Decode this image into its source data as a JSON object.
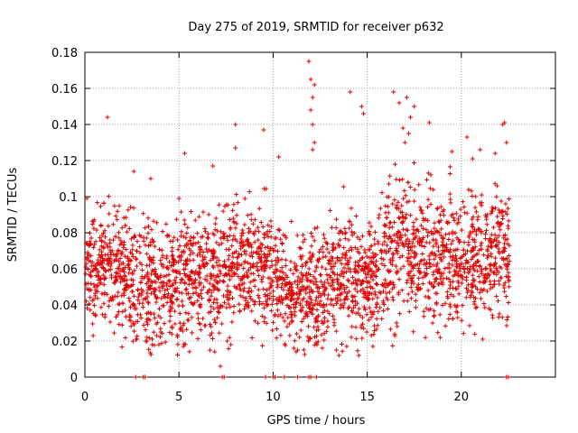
{
  "chart_data": {
    "type": "scatter",
    "title": "Day 275 of 2019, SRMTID for receiver p632",
    "xlabel": "GPS time / hours",
    "ylabel": "SRMTID / TECUs",
    "xlim": [
      0,
      25
    ],
    "ylim": [
      0,
      0.18
    ],
    "xticks": [
      0,
      5,
      10,
      15,
      20
    ],
    "yticks": [
      0,
      0.02,
      0.04,
      0.06,
      0.08,
      0.1,
      0.12,
      0.14,
      0.16,
      0.18
    ],
    "xtick_labels": [
      "0",
      "5",
      "10",
      "15",
      "20"
    ],
    "ytick_labels": [
      "0",
      "0.02",
      "0.04",
      "0.06",
      "0.08",
      "0.1",
      "0.12",
      "0.14",
      "0.16",
      "0.18"
    ],
    "grid": true,
    "marker": "+",
    "color": "#e00000",
    "series": [
      {
        "name": "SRMTID",
        "density_profile": {
          "x_bins": [
            0,
            1,
            2,
            3,
            4,
            5,
            6,
            7,
            8,
            9,
            10,
            11,
            12,
            13,
            14,
            15,
            16,
            17,
            18,
            19,
            20,
            21,
            22,
            22.6
          ],
          "y_center": [
            0.06,
            0.062,
            0.058,
            0.052,
            0.05,
            0.054,
            0.055,
            0.056,
            0.065,
            0.064,
            0.058,
            0.045,
            0.05,
            0.053,
            0.055,
            0.052,
            0.066,
            0.075,
            0.068,
            0.065,
            0.066,
            0.068,
            0.068,
            0.065
          ],
          "y_spread": [
            0.014,
            0.016,
            0.016,
            0.016,
            0.016,
            0.017,
            0.017,
            0.018,
            0.018,
            0.017,
            0.017,
            0.014,
            0.016,
            0.016,
            0.017,
            0.016,
            0.02,
            0.022,
            0.019,
            0.018,
            0.018,
            0.018,
            0.018,
            0.016
          ],
          "points_per_hour": 120
        },
        "outliers": [
          [
            1.2,
            0.144
          ],
          [
            2.6,
            0.114
          ],
          [
            3.5,
            0.11
          ],
          [
            5.3,
            0.124
          ],
          [
            6.8,
            0.117
          ],
          [
            8.0,
            0.14
          ],
          [
            8.0,
            0.127
          ],
          [
            9.5,
            0.137
          ],
          [
            10.3,
            0.122
          ],
          [
            11.9,
            0.175
          ],
          [
            12.0,
            0.165
          ],
          [
            12.1,
            0.155
          ],
          [
            12.2,
            0.162
          ],
          [
            12.0,
            0.148
          ],
          [
            12.1,
            0.14
          ],
          [
            12.2,
            0.13
          ],
          [
            12.1,
            0.126
          ],
          [
            14.1,
            0.158
          ],
          [
            14.7,
            0.15
          ],
          [
            14.8,
            0.146
          ],
          [
            16.4,
            0.158
          ],
          [
            16.7,
            0.152
          ],
          [
            17.1,
            0.155
          ],
          [
            17.3,
            0.144
          ],
          [
            17.5,
            0.15
          ],
          [
            16.9,
            0.138
          ],
          [
            17.2,
            0.135
          ],
          [
            17.0,
            0.13
          ],
          [
            18.3,
            0.141
          ],
          [
            19.5,
            0.125
          ],
          [
            20.3,
            0.133
          ],
          [
            20.6,
            0.121
          ],
          [
            21.0,
            0.126
          ],
          [
            21.8,
            0.124
          ],
          [
            22.3,
            0.141
          ],
          [
            22.2,
            0.14
          ],
          [
            22.4,
            0.13
          ],
          [
            21.9,
            0.106
          ],
          [
            7.2,
            0.006
          ],
          [
            6.9,
            0.014
          ],
          [
            13.5,
            0.012
          ],
          [
            15.3,
            0.017
          ],
          [
            11.1,
            0.016
          ],
          [
            3.3,
            0.022
          ],
          [
            2.7,
            0.0
          ],
          [
            3.1,
            0.0
          ],
          [
            3.2,
            0.0
          ],
          [
            7.3,
            0.0
          ],
          [
            7.4,
            0.0
          ],
          [
            9.6,
            0.0
          ],
          [
            10.0,
            0.0
          ],
          [
            10.1,
            0.0
          ],
          [
            10.6,
            0.0
          ],
          [
            11.3,
            0.0
          ],
          [
            11.9,
            0.0
          ],
          [
            12.0,
            0.0
          ],
          [
            12.3,
            0.0
          ],
          [
            22.4,
            0.0
          ],
          [
            22.5,
            0.0
          ]
        ]
      }
    ]
  }
}
